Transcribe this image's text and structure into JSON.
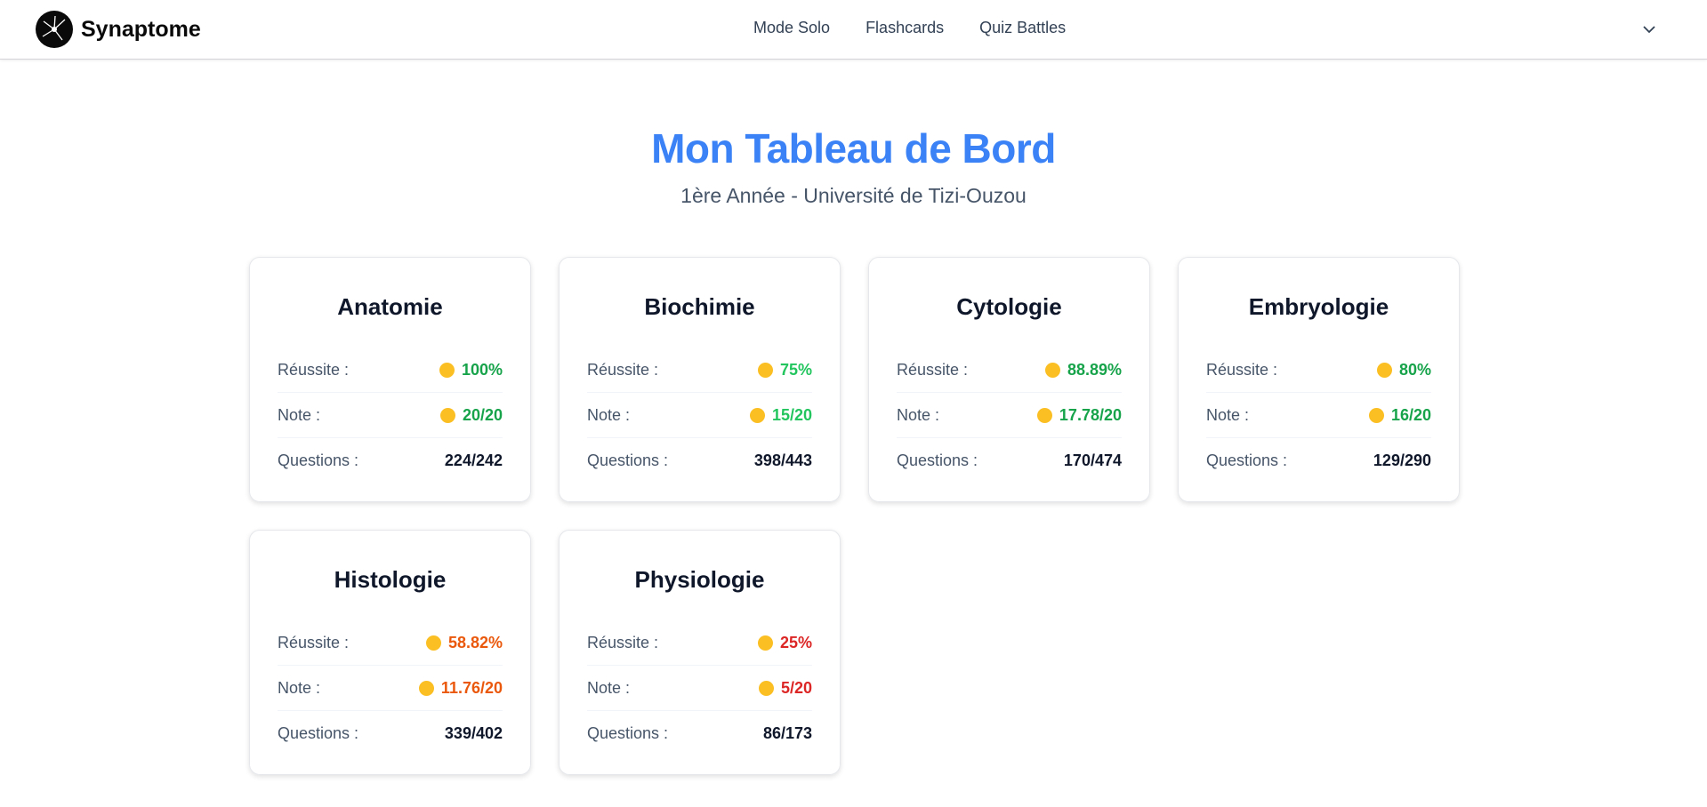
{
  "header": {
    "brand": "Synaptome",
    "links": [
      "Mode Solo",
      "Flashcards",
      "Quiz Battles"
    ]
  },
  "title": "Mon Tableau de Bord",
  "subtitle": "1ère Année - Université de Tizi-Ouzou",
  "cards": [
    {
      "subject": "Anatomie",
      "rows": [
        {
          "label": "Réussite :",
          "value": "100%",
          "color": "#16a34a"
        },
        {
          "label": "Note :",
          "value": "20/20",
          "color": "#16a34a"
        },
        {
          "label": "Questions :",
          "value": "224/242",
          "color": "#0f172a"
        }
      ]
    },
    {
      "subject": "Biochimie",
      "rows": [
        {
          "label": "Réussite :",
          "value": "75%",
          "color": "#22c55e"
        },
        {
          "label": "Note :",
          "value": "15/20",
          "color": "#22c55e"
        },
        {
          "label": "Questions :",
          "value": "398/443",
          "color": "#0f172a"
        }
      ]
    },
    {
      "subject": "Cytologie",
      "rows": [
        {
          "label": "Réussite :",
          "value": "88.89%",
          "color": "#16a34a"
        },
        {
          "label": "Note :",
          "value": "17.78/20",
          "color": "#16a34a"
        },
        {
          "label": "Questions :",
          "value": "170/474",
          "color": "#0f172a"
        }
      ]
    },
    {
      "subject": "Embryologie",
      "rows": [
        {
          "label": "Réussite :",
          "value": "80%",
          "color": "#16a34a"
        },
        {
          "label": "Note :",
          "value": "16/20",
          "color": "#16a34a"
        },
        {
          "label": "Questions :",
          "value": "129/290",
          "color": "#0f172a"
        }
      ]
    },
    {
      "subject": "Histologie",
      "rows": [
        {
          "label": "Réussite :",
          "value": "58.82%",
          "color": "#ea580c"
        },
        {
          "label": "Note :",
          "value": "11.76/20",
          "color": "#ea580c"
        },
        {
          "label": "Questions :",
          "value": "339/402",
          "color": "#0f172a"
        }
      ]
    },
    {
      "subject": "Physiologie",
      "rows": [
        {
          "label": "Réussite :",
          "value": "25%",
          "color": "#dc2626"
        },
        {
          "label": "Note :",
          "value": "5/20",
          "color": "#dc2626"
        },
        {
          "label": "Questions :",
          "value": "86/173",
          "color": "#0f172a"
        }
      ]
    }
  ]
}
